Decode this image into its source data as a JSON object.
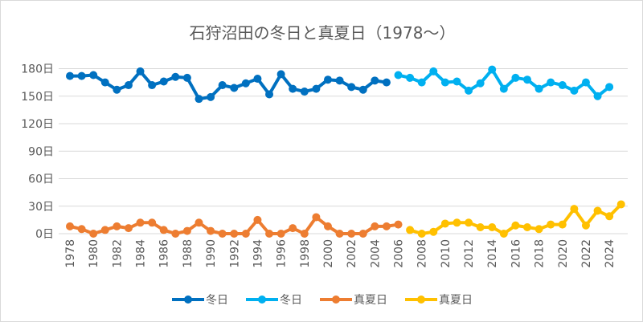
{
  "chart_data": {
    "type": "line",
    "title": "石狩沼田の冬日と真夏日（1978～）",
    "x": [
      1978,
      1979,
      1980,
      1981,
      1982,
      1983,
      1984,
      1985,
      1986,
      1987,
      1988,
      1989,
      1990,
      1991,
      1992,
      1993,
      1994,
      1995,
      1996,
      1997,
      1998,
      1999,
      2000,
      2001,
      2002,
      2003,
      2004,
      2005,
      2006,
      2007,
      2008,
      2009,
      2010,
      2011,
      2012,
      2013,
      2014,
      2015,
      2016,
      2017,
      2018,
      2019,
      2020,
      2021,
      2022,
      2023,
      2024,
      2025
    ],
    "x_tick_labels": [
      "1978",
      "1980",
      "1982",
      "1984",
      "1986",
      "1988",
      "1990",
      "1992",
      "1994",
      "1996",
      "1998",
      "2000",
      "2002",
      "2004",
      "2006",
      "2008",
      "2010",
      "2012",
      "2014",
      "2016",
      "2018",
      "2020",
      "2022",
      "2024"
    ],
    "y_tick_labels": [
      "0日",
      "30日",
      "60日",
      "90日",
      "120日",
      "150日",
      "180日"
    ],
    "ylim": [
      0,
      180
    ],
    "grid": true,
    "legend": "bottom",
    "series": [
      {
        "name": "冬日",
        "color": "#0070C0",
        "values": [
          172,
          172,
          173,
          165,
          157,
          162,
          177,
          162,
          166,
          171,
          170,
          147,
          149,
          162,
          159,
          164,
          169,
          152,
          174,
          158,
          155,
          158,
          168,
          167,
          160,
          157,
          167,
          165,
          null,
          null,
          null,
          null,
          null,
          null,
          null,
          null,
          null,
          null,
          null,
          null,
          null,
          null,
          null,
          null,
          null,
          null,
          null,
          null
        ]
      },
      {
        "name": "冬日",
        "color": "#00B0F0",
        "values": [
          null,
          null,
          null,
          null,
          null,
          null,
          null,
          null,
          null,
          null,
          null,
          null,
          null,
          null,
          null,
          null,
          null,
          null,
          null,
          null,
          null,
          null,
          null,
          null,
          null,
          null,
          null,
          null,
          173,
          170,
          165,
          177,
          165,
          166,
          156,
          164,
          179,
          158,
          170,
          168,
          158,
          165,
          162,
          156,
          165,
          150,
          160,
          null
        ]
      },
      {
        "name": "真夏日",
        "color": "#ED7D31",
        "values": [
          8,
          5,
          0,
          4,
          8,
          6,
          12,
          12,
          4,
          0,
          3,
          12,
          3,
          0,
          0,
          0,
          15,
          0,
          0,
          6,
          0,
          18,
          8,
          0,
          0,
          0,
          8,
          8,
          10,
          null,
          null,
          null,
          null,
          null,
          null,
          null,
          null,
          null,
          null,
          null,
          null,
          null,
          null,
          null,
          null,
          null,
          null,
          null
        ]
      },
      {
        "name": "真夏日",
        "color": "#FFC000",
        "values": [
          null,
          null,
          null,
          null,
          null,
          null,
          null,
          null,
          null,
          null,
          null,
          null,
          null,
          null,
          null,
          null,
          null,
          null,
          null,
          null,
          null,
          null,
          null,
          null,
          null,
          null,
          null,
          null,
          null,
          4,
          0,
          2,
          11,
          12,
          12,
          7,
          7,
          0,
          9,
          7,
          5,
          10,
          10,
          27,
          9,
          25,
          19,
          32
        ]
      }
    ]
  }
}
